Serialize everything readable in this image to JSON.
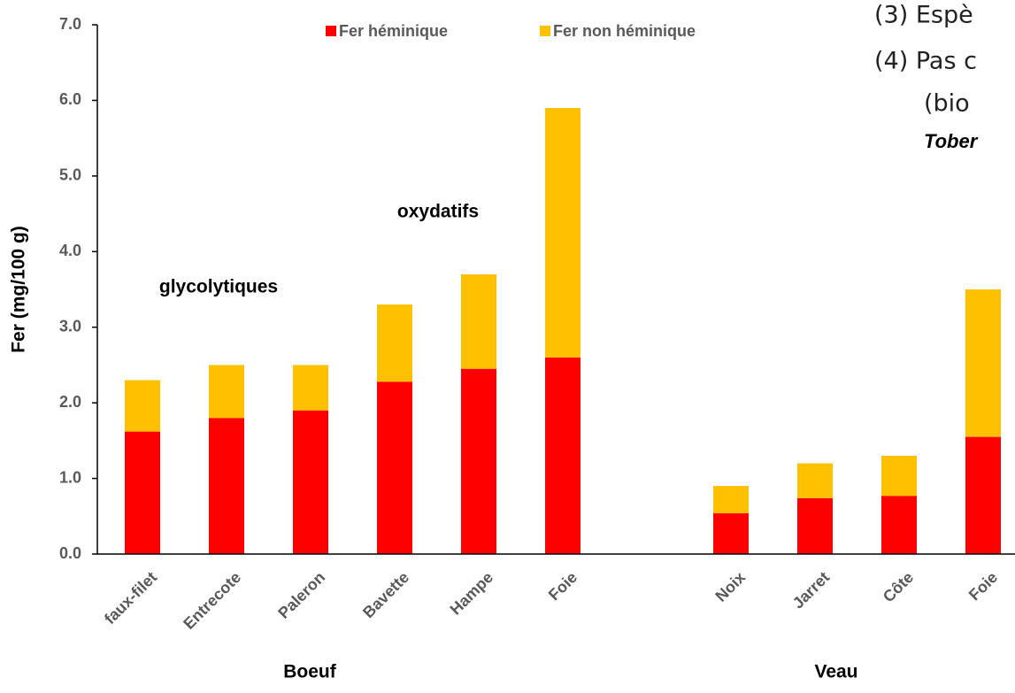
{
  "chart_data": {
    "type": "stacked_bar",
    "y_label": "Fer (mg/100 g)",
    "categories": [
      "faux-filet",
      "Entrecote",
      "Paleron",
      "Bavette",
      "Hampe",
      "Foie",
      null,
      "Noix",
      "Jarret",
      "Côte",
      "Foie"
    ],
    "series": [
      {
        "name": "Fer héminique",
        "color": "#ff0000",
        "values": [
          1.62,
          1.8,
          1.9,
          2.28,
          2.45,
          2.6,
          null,
          0.54,
          0.74,
          0.77,
          1.55
        ]
      },
      {
        "name": "Fer non héminique",
        "color": "#ffc000",
        "values": [
          0.68,
          0.7,
          0.6,
          1.02,
          1.25,
          3.3,
          null,
          0.36,
          0.46,
          0.53,
          1.95
        ]
      }
    ],
    "ylim": [
      0,
      7
    ],
    "yticks": [
      {
        "value": 0,
        "label": "0.0"
      },
      {
        "value": 1,
        "label": "1.0"
      },
      {
        "value": 2,
        "label": "2.0"
      },
      {
        "value": 3,
        "label": "3.0"
      },
      {
        "value": 4,
        "label": "4.0"
      },
      {
        "value": 5,
        "label": "5.0"
      },
      {
        "value": 6,
        "label": "6.0"
      },
      {
        "value": 7,
        "label": "7.0"
      }
    ],
    "annotations": [
      "glycolytiques",
      "oxydatifs"
    ],
    "groups": [
      "Boeuf",
      "Veau"
    ],
    "legend": "top"
  },
  "side_text": [
    "(3) Espè",
    "(4) Pas c",
    "(bio",
    "Tober"
  ]
}
